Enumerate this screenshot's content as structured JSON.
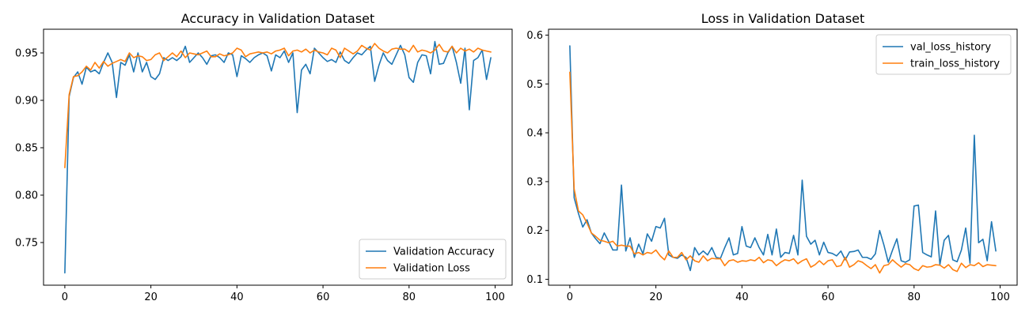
{
  "colors": {
    "blue": "#1f77b4",
    "orange": "#ff7f0e"
  },
  "chart_data": [
    {
      "type": "line",
      "title": "Accuracy in Validation Dataset",
      "xlabel": "",
      "ylabel": "",
      "xlim": [
        -4.95,
        103.95
      ],
      "ylim": [
        0.705,
        0.975
      ],
      "xticks": [
        0,
        20,
        40,
        60,
        80,
        100
      ],
      "yticks": [
        0.75,
        0.8,
        0.85,
        0.9,
        0.95
      ],
      "ytick_labels": [
        "0.75",
        "0.80",
        "0.85",
        "0.90",
        "0.95"
      ],
      "grid": false,
      "legend_position": "lower-right",
      "series": [
        {
          "name": "Validation Accuracy",
          "color": "#1f77b4",
          "values": [
            0.718,
            0.904,
            0.924,
            0.93,
            0.917,
            0.935,
            0.93,
            0.932,
            0.928,
            0.94,
            0.95,
            0.94,
            0.903,
            0.94,
            0.937,
            0.948,
            0.93,
            0.95,
            0.93,
            0.94,
            0.925,
            0.922,
            0.928,
            0.945,
            0.942,
            0.945,
            0.942,
            0.946,
            0.957,
            0.94,
            0.945,
            0.95,
            0.945,
            0.938,
            0.947,
            0.948,
            0.945,
            0.94,
            0.95,
            0.948,
            0.925,
            0.947,
            0.944,
            0.94,
            0.945,
            0.948,
            0.95,
            0.947,
            0.931,
            0.948,
            0.945,
            0.952,
            0.94,
            0.95,
            0.887,
            0.932,
            0.938,
            0.928,
            0.955,
            0.95,
            0.945,
            0.941,
            0.943,
            0.94,
            0.951,
            0.942,
            0.939,
            0.945,
            0.95,
            0.948,
            0.953,
            0.957,
            0.92,
            0.937,
            0.95,
            0.942,
            0.938,
            0.948,
            0.958,
            0.948,
            0.924,
            0.919,
            0.94,
            0.948,
            0.947,
            0.928,
            0.962,
            0.938,
            0.939,
            0.95,
            0.957,
            0.94,
            0.918,
            0.955,
            0.89,
            0.942,
            0.945,
            0.953,
            0.922,
            0.945
          ]
        },
        {
          "name": "Validation Loss",
          "color": "#ff7f0e",
          "values": [
            0.829,
            0.906,
            0.925,
            0.926,
            0.93,
            0.936,
            0.932,
            0.94,
            0.934,
            0.941,
            0.936,
            0.939,
            0.941,
            0.943,
            0.941,
            0.95,
            0.945,
            0.947,
            0.946,
            0.942,
            0.943,
            0.948,
            0.95,
            0.942,
            0.946,
            0.95,
            0.946,
            0.952,
            0.945,
            0.95,
            0.949,
            0.948,
            0.95,
            0.952,
            0.946,
            0.946,
            0.949,
            0.947,
            0.948,
            0.95,
            0.955,
            0.953,
            0.946,
            0.949,
            0.95,
            0.951,
            0.95,
            0.951,
            0.949,
            0.952,
            0.953,
            0.955,
            0.947,
            0.952,
            0.953,
            0.951,
            0.954,
            0.95,
            0.953,
            0.951,
            0.95,
            0.948,
            0.955,
            0.953,
            0.945,
            0.955,
            0.952,
            0.949,
            0.952,
            0.958,
            0.955,
            0.953,
            0.96,
            0.955,
            0.952,
            0.95,
            0.954,
            0.955,
            0.954,
            0.954,
            0.951,
            0.958,
            0.951,
            0.953,
            0.952,
            0.95,
            0.953,
            0.959,
            0.952,
            0.951,
            0.957,
            0.95,
            0.955,
            0.952,
            0.954,
            0.951,
            0.955,
            0.953,
            0.952,
            0.951
          ]
        }
      ]
    },
    {
      "type": "line",
      "title": "Loss in Validation Dataset",
      "xlabel": "",
      "ylabel": "",
      "xlim": [
        -4.95,
        103.95
      ],
      "ylim": [
        0.088,
        0.612
      ],
      "xticks": [
        0,
        20,
        40,
        60,
        80,
        100
      ],
      "yticks": [
        0.1,
        0.2,
        0.3,
        0.4,
        0.5,
        0.6
      ],
      "ytick_labels": [
        "0.1",
        "0.2",
        "0.3",
        "0.4",
        "0.5",
        "0.6"
      ],
      "grid": false,
      "legend_position": "upper-right",
      "series": [
        {
          "name": "val_loss_history",
          "color": "#1f77b4",
          "values": [
            0.578,
            0.267,
            0.235,
            0.207,
            0.222,
            0.195,
            0.183,
            0.173,
            0.195,
            0.178,
            0.16,
            0.16,
            0.293,
            0.158,
            0.185,
            0.145,
            0.172,
            0.152,
            0.193,
            0.178,
            0.208,
            0.205,
            0.225,
            0.15,
            0.145,
            0.143,
            0.15,
            0.145,
            0.118,
            0.165,
            0.15,
            0.158,
            0.15,
            0.165,
            0.145,
            0.143,
            0.165,
            0.185,
            0.15,
            0.153,
            0.208,
            0.168,
            0.165,
            0.185,
            0.165,
            0.15,
            0.192,
            0.15,
            0.203,
            0.145,
            0.155,
            0.153,
            0.19,
            0.15,
            0.303,
            0.188,
            0.172,
            0.18,
            0.15,
            0.176,
            0.155,
            0.153,
            0.148,
            0.158,
            0.14,
            0.156,
            0.157,
            0.16,
            0.145,
            0.145,
            0.141,
            0.152,
            0.2,
            0.17,
            0.135,
            0.16,
            0.183,
            0.138,
            0.135,
            0.14,
            0.25,
            0.252,
            0.155,
            0.15,
            0.146,
            0.24,
            0.13,
            0.18,
            0.19,
            0.14,
            0.136,
            0.16,
            0.205,
            0.133,
            0.395,
            0.175,
            0.182,
            0.138,
            0.218,
            0.158
          ]
        },
        {
          "name": "train_loss_history",
          "color": "#ff7f0e",
          "values": [
            0.524,
            0.285,
            0.24,
            0.232,
            0.215,
            0.195,
            0.188,
            0.18,
            0.178,
            0.175,
            0.178,
            0.168,
            0.17,
            0.168,
            0.168,
            0.152,
            0.155,
            0.15,
            0.155,
            0.153,
            0.16,
            0.148,
            0.14,
            0.158,
            0.145,
            0.145,
            0.155,
            0.14,
            0.148,
            0.138,
            0.135,
            0.148,
            0.138,
            0.143,
            0.142,
            0.142,
            0.128,
            0.138,
            0.14,
            0.135,
            0.138,
            0.137,
            0.14,
            0.138,
            0.145,
            0.134,
            0.14,
            0.138,
            0.128,
            0.135,
            0.14,
            0.138,
            0.142,
            0.132,
            0.138,
            0.142,
            0.125,
            0.13,
            0.138,
            0.13,
            0.138,
            0.14,
            0.126,
            0.128,
            0.145,
            0.125,
            0.13,
            0.138,
            0.135,
            0.128,
            0.122,
            0.13,
            0.113,
            0.128,
            0.13,
            0.14,
            0.132,
            0.125,
            0.132,
            0.13,
            0.122,
            0.118,
            0.128,
            0.125,
            0.126,
            0.13,
            0.129,
            0.123,
            0.13,
            0.12,
            0.116,
            0.133,
            0.124,
            0.13,
            0.128,
            0.134,
            0.126,
            0.13,
            0.129,
            0.128
          ]
        }
      ]
    }
  ]
}
